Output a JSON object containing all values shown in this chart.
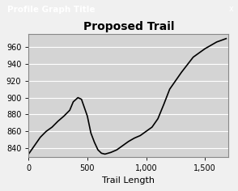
{
  "title": "Proposed Trail",
  "xlabel": "Trail Length",
  "ylabel": "",
  "window_title": "Profile Graph Title",
  "xlim": [
    0,
    1700
  ],
  "ylim": [
    830,
    975
  ],
  "yticks": [
    840,
    860,
    880,
    900,
    920,
    940,
    960
  ],
  "xticks": [
    0,
    500,
    1000,
    1500
  ],
  "xticklabels": [
    "0",
    "500",
    "1,000",
    "1,500"
  ],
  "plot_bg_color": "#d4d4d4",
  "outer_bg_color": "#f0f0f0",
  "title_bar_color": "#003399",
  "title_bar_text_color": "#ffffff",
  "line_color": "#000000",
  "grid_color": "#ffffff",
  "line_width": 1.2,
  "x_data": [
    0,
    50,
    100,
    150,
    200,
    250,
    300,
    350,
    380,
    420,
    450,
    500,
    530,
    560,
    590,
    620,
    650,
    700,
    750,
    800,
    850,
    900,
    950,
    1000,
    1050,
    1100,
    1150,
    1200,
    1300,
    1400,
    1500,
    1600,
    1680
  ],
  "y_data": [
    833,
    843,
    853,
    860,
    865,
    872,
    878,
    885,
    895,
    900,
    898,
    878,
    858,
    847,
    838,
    834,
    833,
    835,
    838,
    843,
    848,
    852,
    855,
    860,
    865,
    875,
    892,
    910,
    930,
    948,
    958,
    966,
    970
  ]
}
